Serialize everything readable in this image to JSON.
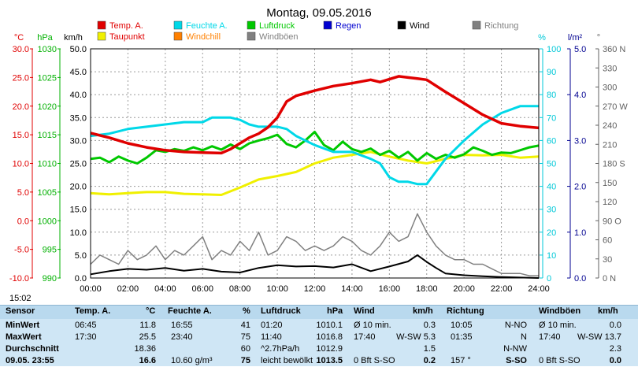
{
  "chart_data": {
    "type": "line",
    "title": "Montag, 09.05.2016",
    "time_label": "15:02",
    "x_axis": {
      "range_h": [
        0,
        24
      ],
      "ticks": [
        "00:00",
        "02:00",
        "04:00",
        "06:00",
        "08:00",
        "10:00",
        "12:00",
        "14:00",
        "16:00",
        "18:00",
        "20:00",
        "22:00",
        "24:00"
      ]
    },
    "axes": {
      "temp": {
        "unit": "°C",
        "color": "#e00000",
        "range": [
          -10,
          30
        ],
        "ticks": [
          "30.0",
          "25.0",
          "20.0",
          "15.0",
          "10.0",
          "5.0",
          "0.0",
          "-5.0",
          "-10.0"
        ]
      },
      "pressure": {
        "unit": "hPa",
        "color": "#00b000",
        "range": [
          990,
          1030
        ],
        "ticks": [
          "1030",
          "1025",
          "1020",
          "1015",
          "1010",
          "1005",
          "1000",
          "995",
          "990"
        ]
      },
      "wind": {
        "unit": "km/h",
        "color": "#000000",
        "range": [
          0,
          50
        ],
        "ticks": [
          "50.0",
          "45.0",
          "40.0",
          "35.0",
          "30.0",
          "25.0",
          "20.0",
          "15.0",
          "10.0",
          "5.0",
          "0.0"
        ]
      },
      "humidity": {
        "unit": "%",
        "color": "#00c8d8",
        "range": [
          0,
          100
        ],
        "ticks": [
          "100",
          "90",
          "80",
          "70",
          "60",
          "50",
          "40",
          "30",
          "20",
          "10",
          "0"
        ]
      },
      "rain": {
        "unit": "l/m²",
        "color": "#000090",
        "range": [
          0,
          5
        ],
        "ticks": [
          "5.0",
          "4.0",
          "3.0",
          "2.0",
          "1.0",
          "0.0"
        ]
      },
      "direction": {
        "unit": "°",
        "color": "#606060",
        "range": [
          0,
          360
        ],
        "ticks": [
          "360 N",
          "330",
          "300",
          "270 W",
          "240",
          "210",
          "180 S",
          "150",
          "120",
          "90 O",
          "60",
          "30",
          "0 N"
        ]
      }
    },
    "legend": [
      {
        "name": "Temp. A.",
        "color": "#e00000"
      },
      {
        "name": "Feuchte A.",
        "color": "#00d8e8"
      },
      {
        "name": "Luftdruck",
        "color": "#00c800"
      },
      {
        "name": "Regen",
        "color": "#0000d0"
      },
      {
        "name": "Wind",
        "color": "#000000"
      },
      {
        "name": "Richtung",
        "color": "#808080"
      },
      {
        "name": "Taupunkt",
        "color": "#f0f000"
      },
      {
        "name": "Windchill",
        "color": "#ff8000"
      },
      {
        "name": "Windböen",
        "color": "#808080"
      }
    ],
    "series": [
      {
        "name": "Temp. A.",
        "axis": "temp",
        "x": [
          0,
          1,
          2,
          3,
          4,
          5,
          6,
          7,
          7.5,
          8,
          8.5,
          9,
          9.5,
          10,
          10.5,
          11,
          12,
          13,
          14,
          15,
          15.5,
          16,
          16.5,
          17,
          17.5,
          18,
          19,
          20,
          21,
          22,
          23,
          24
        ],
        "values": [
          15.3,
          14.5,
          13.5,
          12.8,
          12.3,
          12.0,
          11.9,
          11.8,
          12.5,
          13.5,
          14.5,
          15.2,
          16.3,
          18.0,
          20.8,
          21.8,
          22.7,
          23.5,
          24.0,
          24.6,
          24.2,
          24.7,
          25.2,
          25.0,
          24.8,
          24.6,
          22.5,
          20.5,
          18.5,
          17.0,
          16.5,
          16.2
        ]
      },
      {
        "name": "Feuchte A.",
        "axis": "humidity",
        "x": [
          0,
          1,
          2,
          3,
          4,
          5,
          6,
          6.5,
          7,
          7.5,
          8,
          8.5,
          9,
          9.5,
          10,
          10.5,
          11,
          12,
          13,
          14,
          15,
          15.5,
          16,
          16.5,
          17,
          17.5,
          18,
          19,
          20,
          21,
          22,
          23,
          24
        ],
        "values": [
          62,
          63,
          65,
          66,
          67,
          68,
          68,
          70,
          70,
          70,
          69,
          67,
          66,
          66,
          66,
          65,
          62,
          58,
          55,
          55,
          52,
          50,
          44,
          42,
          42,
          41,
          41,
          52,
          60,
          67,
          72,
          75,
          75
        ]
      },
      {
        "name": "Luftdruck",
        "axis": "pressure",
        "x": [
          0,
          0.5,
          1,
          1.5,
          2,
          2.5,
          3,
          3.5,
          4,
          4.5,
          5,
          5.5,
          6,
          6.5,
          7,
          7.5,
          8,
          8.5,
          9,
          9.5,
          10,
          10.5,
          11,
          11.5,
          12,
          12.5,
          13,
          13.5,
          14,
          14.5,
          15,
          15.5,
          16,
          16.5,
          17,
          17.5,
          18,
          18.5,
          19,
          19.5,
          20,
          20.5,
          21,
          21.5,
          22,
          22.5,
          23,
          23.5,
          24
        ],
        "values": [
          1010.8,
          1011.0,
          1010.2,
          1011.2,
          1010.5,
          1010.0,
          1011.0,
          1012.3,
          1012.0,
          1012.5,
          1012.2,
          1012.8,
          1012.3,
          1013.0,
          1012.4,
          1013.3,
          1012.5,
          1013.5,
          1014.0,
          1014.4,
          1015.0,
          1013.4,
          1012.8,
          1014.0,
          1015.5,
          1013.2,
          1012.3,
          1013.8,
          1012.5,
          1012.0,
          1012.6,
          1011.5,
          1012.2,
          1011.0,
          1012.0,
          1010.5,
          1011.8,
          1010.8,
          1011.5,
          1011.0,
          1011.6,
          1012.8,
          1012.2,
          1011.5,
          1011.9,
          1011.8,
          1012.3,
          1012.8,
          1013.1
        ]
      },
      {
        "name": "Taupunkt",
        "axis": "temp",
        "x": [
          0,
          1,
          2,
          3,
          4,
          5,
          6,
          7,
          8,
          9,
          10,
          11,
          12,
          13,
          14,
          15,
          16,
          17,
          18,
          19,
          20,
          21,
          22,
          23,
          24
        ],
        "values": [
          4.8,
          4.6,
          4.8,
          5.0,
          5.0,
          4.7,
          4.6,
          4.5,
          5.8,
          7.2,
          7.8,
          8.5,
          10.0,
          11.0,
          11.5,
          12.0,
          11.2,
          10.5,
          10.0,
          10.8,
          11.5,
          11.4,
          11.5,
          11.0,
          11.2
        ]
      },
      {
        "name": "Wind",
        "axis": "wind",
        "x": [
          0,
          1,
          2,
          3,
          4,
          5,
          6,
          7,
          8,
          9,
          10,
          11,
          12,
          13,
          14,
          15,
          16,
          17,
          17.5,
          18,
          18.5,
          19,
          20,
          21,
          22,
          23,
          24
        ],
        "values": [
          0.8,
          1.5,
          2.0,
          1.8,
          2.2,
          1.6,
          2.0,
          1.4,
          1.2,
          2.2,
          2.8,
          2.5,
          2.6,
          2.3,
          3.0,
          1.5,
          2.5,
          3.6,
          5.0,
          3.5,
          2.2,
          1.0,
          0.6,
          0.4,
          0.2,
          0.1,
          0.0
        ]
      },
      {
        "name": "Windböen",
        "axis": "wind",
        "x": [
          0,
          0.5,
          1,
          1.5,
          2,
          2.5,
          3,
          3.5,
          4,
          4.5,
          5,
          5.5,
          6,
          6.5,
          7,
          7.5,
          8,
          8.5,
          9,
          9.5,
          10,
          10.5,
          11,
          11.5,
          12,
          12.5,
          13,
          13.5,
          14,
          14.5,
          15,
          15.5,
          16,
          16.5,
          17,
          17.5,
          18,
          18.5,
          19,
          19.5,
          20,
          20.5,
          21,
          21.5,
          22,
          22.5,
          23,
          23.5,
          24
        ],
        "values": [
          3,
          5,
          4,
          3,
          6,
          4,
          5,
          7,
          4,
          6,
          5,
          7,
          9,
          4,
          6,
          5,
          8,
          6,
          10,
          5,
          6,
          9,
          8,
          6,
          7,
          6,
          7,
          9,
          8,
          6,
          5,
          7,
          10,
          8,
          9,
          14,
          10,
          7,
          5,
          4,
          4,
          3,
          3,
          2,
          1,
          1,
          1,
          0.5,
          0.5
        ]
      }
    ]
  },
  "table": {
    "headers": {
      "sensor": "Sensor",
      "temp": "Temp. A.",
      "temp_unit": "°C",
      "hum": "Feuchte A.",
      "hum_unit": "%",
      "press": "Luftdruck",
      "press_unit": "hPa",
      "wind": "Wind",
      "wind_unit": "km/h",
      "dir": "Richtung",
      "gust": "Windböen",
      "gust_unit": "km/h"
    },
    "rows": [
      {
        "label": "MinWert",
        "c": [
          "06:45",
          "11.8",
          "16:55",
          "41",
          "01:20",
          "1010.1",
          "Ø 10 min.",
          "0.3",
          "10:05",
          "N-NO",
          "Ø 10 min.",
          "0.0"
        ]
      },
      {
        "label": "MaxWert",
        "c": [
          "17:30",
          "25.5",
          "23:40",
          "75",
          "11:40",
          "1016.8",
          "17:40",
          "W-SW 5.3",
          "01:35",
          "N",
          "17:40",
          "W-SW 13.7"
        ]
      },
      {
        "label": "Durchschnitt",
        "c": [
          "",
          "18.36",
          "",
          "60",
          "^2.7hPa/h",
          "1012.9",
          "",
          "1.5",
          "",
          "N-NW",
          "",
          "2.3"
        ]
      },
      {
        "label": "09.05. 23:55",
        "c": [
          "",
          "16.6",
          "10.60 g/m³",
          "75",
          "leicht bewölkt",
          "1013.5",
          "0 Bft S-SO",
          "0.2",
          "157 °",
          "S-SO",
          "0 Bft S-SO",
          "0.0"
        ]
      }
    ]
  }
}
